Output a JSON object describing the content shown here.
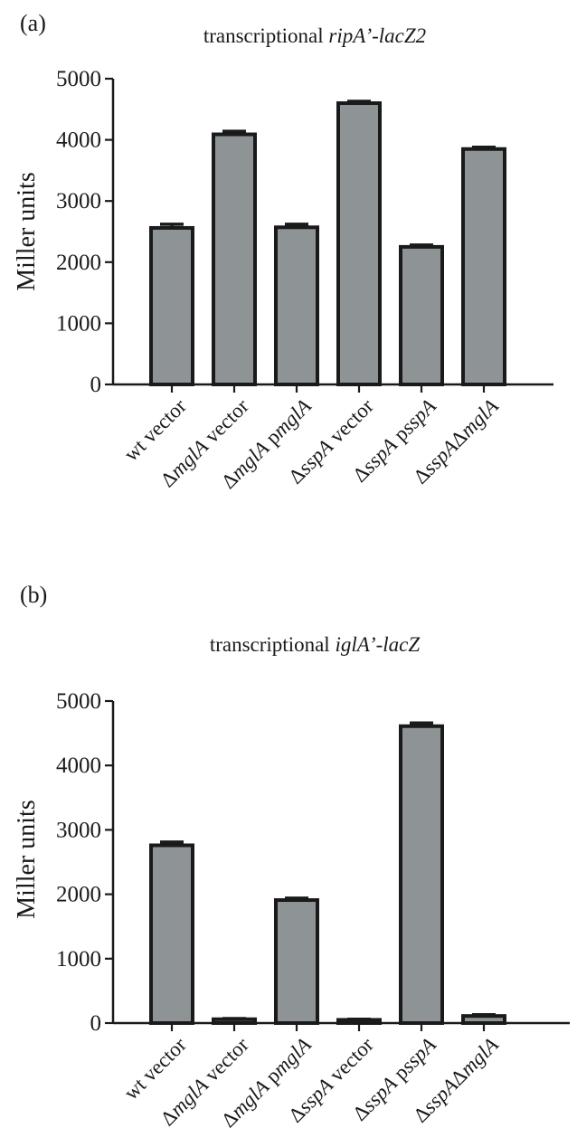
{
  "chart_data": [
    {
      "type": "bar",
      "panel_label": "(a)",
      "title": {
        "plain": "transcriptional ",
        "italic": "ripA’-lacZ2"
      },
      "ylabel": "Miller units",
      "ylim": [
        0,
        5000
      ],
      "yticks": [
        0,
        1000,
        2000,
        3000,
        4000,
        5000
      ],
      "categories": [
        [
          {
            "t": "wt vector",
            "i": false
          }
        ],
        [
          {
            "t": "Δ",
            "i": false
          },
          {
            "t": "mglA",
            "i": true
          },
          {
            "t": " vector",
            "i": false
          }
        ],
        [
          {
            "t": "Δ",
            "i": false
          },
          {
            "t": "mglA",
            "i": true
          },
          {
            "t": " p",
            "i": false
          },
          {
            "t": "mglA",
            "i": true
          }
        ],
        [
          {
            "t": "Δ",
            "i": false
          },
          {
            "t": "sspA",
            "i": true
          },
          {
            "t": " vector",
            "i": false
          }
        ],
        [
          {
            "t": "Δ",
            "i": false
          },
          {
            "t": "sspA",
            "i": true
          },
          {
            "t": " p",
            "i": false
          },
          {
            "t": "sspA",
            "i": true
          }
        ],
        [
          {
            "t": "Δ",
            "i": false
          },
          {
            "t": "sspA",
            "i": true
          },
          {
            "t": "Δ",
            "i": false
          },
          {
            "t": "mglA",
            "i": true
          }
        ]
      ],
      "values": [
        2560,
        4090,
        2570,
        4600,
        2250,
        3850
      ],
      "errors": [
        60,
        50,
        50,
        30,
        30,
        30
      ],
      "bar_color": "#8e9396",
      "grid": false
    },
    {
      "type": "bar",
      "panel_label": "(b)",
      "title": {
        "plain": "transcriptional ",
        "italic": "iglA’-lacZ"
      },
      "ylabel": "Miller units",
      "ylim": [
        0,
        5000
      ],
      "yticks": [
        0,
        1000,
        2000,
        3000,
        4000,
        5000
      ],
      "categories": [
        [
          {
            "t": "wt vector",
            "i": false
          }
        ],
        [
          {
            "t": "Δ",
            "i": false
          },
          {
            "t": "mglA",
            "i": true
          },
          {
            "t": " vector",
            "i": false
          }
        ],
        [
          {
            "t": "Δ",
            "i": false
          },
          {
            "t": "mglA",
            "i": true
          },
          {
            "t": " p",
            "i": false
          },
          {
            "t": "mglA",
            "i": true
          }
        ],
        [
          {
            "t": "Δ",
            "i": false
          },
          {
            "t": "sspA",
            "i": true
          },
          {
            "t": " vector",
            "i": false
          }
        ],
        [
          {
            "t": "Δ",
            "i": false
          },
          {
            "t": "sspA",
            "i": true
          },
          {
            "t": " p",
            "i": false
          },
          {
            "t": "sspA",
            "i": true
          }
        ],
        [
          {
            "t": "Δ",
            "i": false
          },
          {
            "t": "sspA",
            "i": true
          },
          {
            "t": "Δ",
            "i": false
          },
          {
            "t": "mglA",
            "i": true
          }
        ]
      ],
      "values": [
        2760,
        60,
        1910,
        50,
        4610,
        110
      ],
      "errors": [
        50,
        10,
        30,
        10,
        50,
        20
      ],
      "bar_color": "#8e9396",
      "grid": false
    }
  ]
}
